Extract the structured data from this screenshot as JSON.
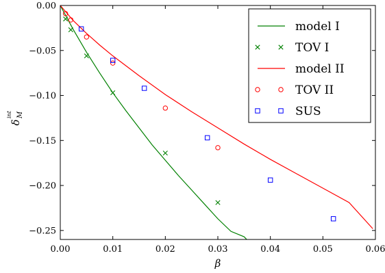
{
  "chart_data": {
    "type": "scatter",
    "xlabel": "β",
    "ylabel": "δ",
    "ylabel_sup": "int",
    "ylabel_sub": "M",
    "xlim": [
      0.0,
      0.06
    ],
    "ylim": [
      -0.26,
      0.0
    ],
    "xticks": [
      0.0,
      0.01,
      0.02,
      0.03,
      0.04,
      0.05,
      0.06
    ],
    "xtick_labels": [
      "0.00",
      "0.01",
      "0.02",
      "0.03",
      "0.04",
      "0.05",
      "0.06"
    ],
    "yticks": [
      0.0,
      -0.05,
      -0.1,
      -0.15,
      -0.2,
      -0.25
    ],
    "ytick_labels": [
      "0.00",
      "−0.05",
      "−0.10",
      "−0.15",
      "−0.20",
      "−0.25"
    ],
    "grid": false,
    "legend_position": "top-right",
    "series": [
      {
        "name": "model I",
        "kind": "line",
        "color": "#008000",
        "x": [
          0.0,
          0.0025,
          0.005,
          0.0075,
          0.01,
          0.0125,
          0.015,
          0.0175,
          0.02,
          0.0225,
          0.025,
          0.0275,
          0.03,
          0.0325,
          0.035,
          0.0355
        ],
        "y": [
          0.0,
          -0.027,
          -0.052,
          -0.075,
          -0.097,
          -0.117,
          -0.136,
          -0.155,
          -0.172,
          -0.189,
          -0.205,
          -0.221,
          -0.237,
          -0.251,
          -0.257,
          -0.26
        ]
      },
      {
        "name": "TOV I",
        "kind": "marker",
        "marker": "x",
        "color": "#008000",
        "x": [
          0.001,
          0.002,
          0.005,
          0.01,
          0.02,
          0.03
        ],
        "y": [
          -0.015,
          -0.027,
          -0.056,
          -0.097,
          -0.164,
          -0.219
        ]
      },
      {
        "name": "model II",
        "kind": "line",
        "color": "#ff0000",
        "x": [
          0.0,
          0.0025,
          0.005,
          0.0075,
          0.01,
          0.015,
          0.02,
          0.025,
          0.03,
          0.035,
          0.04,
          0.045,
          0.05,
          0.055,
          0.0595
        ],
        "y": [
          0.0,
          -0.017,
          -0.031,
          -0.044,
          -0.056,
          -0.078,
          -0.099,
          -0.118,
          -0.136,
          -0.154,
          -0.171,
          -0.187,
          -0.203,
          -0.219,
          -0.248
        ]
      },
      {
        "name": "TOV II",
        "kind": "marker",
        "marker": "circle",
        "color": "#ff0000",
        "x": [
          0.001,
          0.002,
          0.005,
          0.01,
          0.02,
          0.03
        ],
        "y": [
          -0.009,
          -0.016,
          -0.035,
          -0.064,
          -0.114,
          -0.158
        ]
      },
      {
        "name": "SUS",
        "kind": "marker",
        "marker": "square",
        "color": "#0000ff",
        "x": [
          0.004,
          0.01,
          0.016,
          0.028,
          0.04,
          0.052
        ],
        "y": [
          -0.026,
          -0.061,
          -0.092,
          -0.147,
          -0.194,
          -0.237
        ]
      }
    ]
  }
}
